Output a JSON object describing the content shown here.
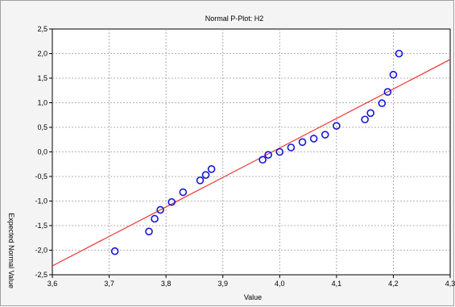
{
  "chart_data": {
    "type": "scatter",
    "title": "Normal P-Plot: H2",
    "xlabel": "Value",
    "ylabel": "Expected Normal Value",
    "xlim": [
      3.6,
      4.3
    ],
    "ylim": [
      -2.5,
      2.5
    ],
    "x_ticks": [
      "3,6",
      "3,7",
      "3,8",
      "3,9",
      "4,0",
      "4,1",
      "4,2",
      "4,3"
    ],
    "x_tick_values": [
      3.6,
      3.7,
      3.8,
      3.9,
      4.0,
      4.1,
      4.2,
      4.3
    ],
    "y_ticks": [
      "2,5",
      "2,0",
      "1,5",
      "1,0",
      "0,5",
      "0,0",
      "-0,5",
      "-1,0",
      "-1,5",
      "-2,0",
      "-2,5"
    ],
    "y_tick_values": [
      2.5,
      2.0,
      1.5,
      1.0,
      0.5,
      0.0,
      -0.5,
      -1.0,
      -1.5,
      -2.0,
      -2.5
    ],
    "grid": true,
    "points": [
      {
        "x": 3.71,
        "y": -2.02
      },
      {
        "x": 3.77,
        "y": -1.62
      },
      {
        "x": 3.78,
        "y": -1.36
      },
      {
        "x": 3.79,
        "y": -1.18
      },
      {
        "x": 3.81,
        "y": -1.02
      },
      {
        "x": 3.83,
        "y": -0.82
      },
      {
        "x": 3.86,
        "y": -0.58
      },
      {
        "x": 3.87,
        "y": -0.47
      },
      {
        "x": 3.88,
        "y": -0.35
      },
      {
        "x": 3.97,
        "y": -0.16
      },
      {
        "x": 3.98,
        "y": -0.06
      },
      {
        "x": 4.0,
        "y": 0.0
      },
      {
        "x": 4.02,
        "y": 0.09
      },
      {
        "x": 4.04,
        "y": 0.2
      },
      {
        "x": 4.06,
        "y": 0.27
      },
      {
        "x": 4.08,
        "y": 0.35
      },
      {
        "x": 4.1,
        "y": 0.53
      },
      {
        "x": 4.15,
        "y": 0.66
      },
      {
        "x": 4.16,
        "y": 0.79
      },
      {
        "x": 4.18,
        "y": 0.99
      },
      {
        "x": 4.19,
        "y": 1.22
      },
      {
        "x": 4.2,
        "y": 1.57
      },
      {
        "x": 4.21,
        "y": 2.0
      }
    ],
    "fit_line": {
      "x": [
        3.6,
        4.3
      ],
      "y": [
        -2.32,
        1.88
      ]
    },
    "colors": {
      "points": "#1515d6",
      "line": "#ee3030",
      "grid": "#9a9a9a",
      "plot_bg": "#ffffff"
    }
  }
}
